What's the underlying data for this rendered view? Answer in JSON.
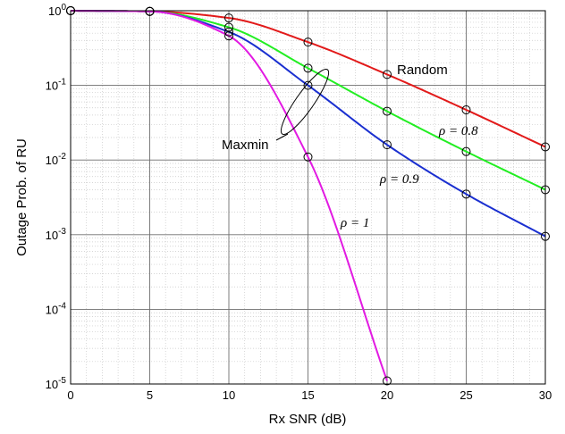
{
  "chart_data": {
    "type": "line",
    "xlabel": "Rx SNR (dB)",
    "ylabel": "Outage Prob. of RU",
    "xlim": [
      0,
      30
    ],
    "ylim": [
      1e-05,
      1
    ],
    "yscale": "log",
    "grid": true,
    "x_ticks": [
      "0",
      "5",
      "10",
      "15",
      "20",
      "25",
      "30"
    ],
    "y_ticks": [
      {
        "base": "10",
        "exp": "0"
      },
      {
        "base": "10",
        "exp": "-1"
      },
      {
        "base": "10",
        "exp": "-2"
      },
      {
        "base": "10",
        "exp": "-3"
      },
      {
        "base": "10",
        "exp": "-4"
      },
      {
        "base": "10",
        "exp": "-5"
      }
    ],
    "annotations": {
      "random": "Random",
      "maxmin": "Maxmin",
      "rho_08": "ρ = 0.8",
      "rho_09": "ρ = 0.9",
      "rho_1": "ρ = 1"
    },
    "series": [
      {
        "color": "#e21a1a",
        "x": [
          0,
          5,
          10,
          15,
          20,
          25,
          30
        ],
        "y": [
          1.0,
          0.98,
          0.8,
          0.38,
          0.14,
          0.047,
          0.015
        ]
      },
      {
        "color": "#22ee22",
        "x": [
          0,
          5,
          10,
          15,
          20,
          25,
          30
        ],
        "y": [
          1.0,
          0.98,
          0.6,
          0.17,
          0.045,
          0.013,
          0.004
        ]
      },
      {
        "color": "#1a2fd0",
        "x": [
          0,
          5,
          10,
          15,
          20,
          25,
          30
        ],
        "y": [
          1.0,
          0.98,
          0.52,
          0.1,
          0.016,
          0.0035,
          0.00095
        ]
      },
      {
        "color": "#e21ae2",
        "x": [
          0,
          5,
          10,
          15,
          20
        ],
        "y": [
          1.0,
          0.98,
          0.46,
          0.011,
          1.1e-05
        ]
      }
    ]
  }
}
